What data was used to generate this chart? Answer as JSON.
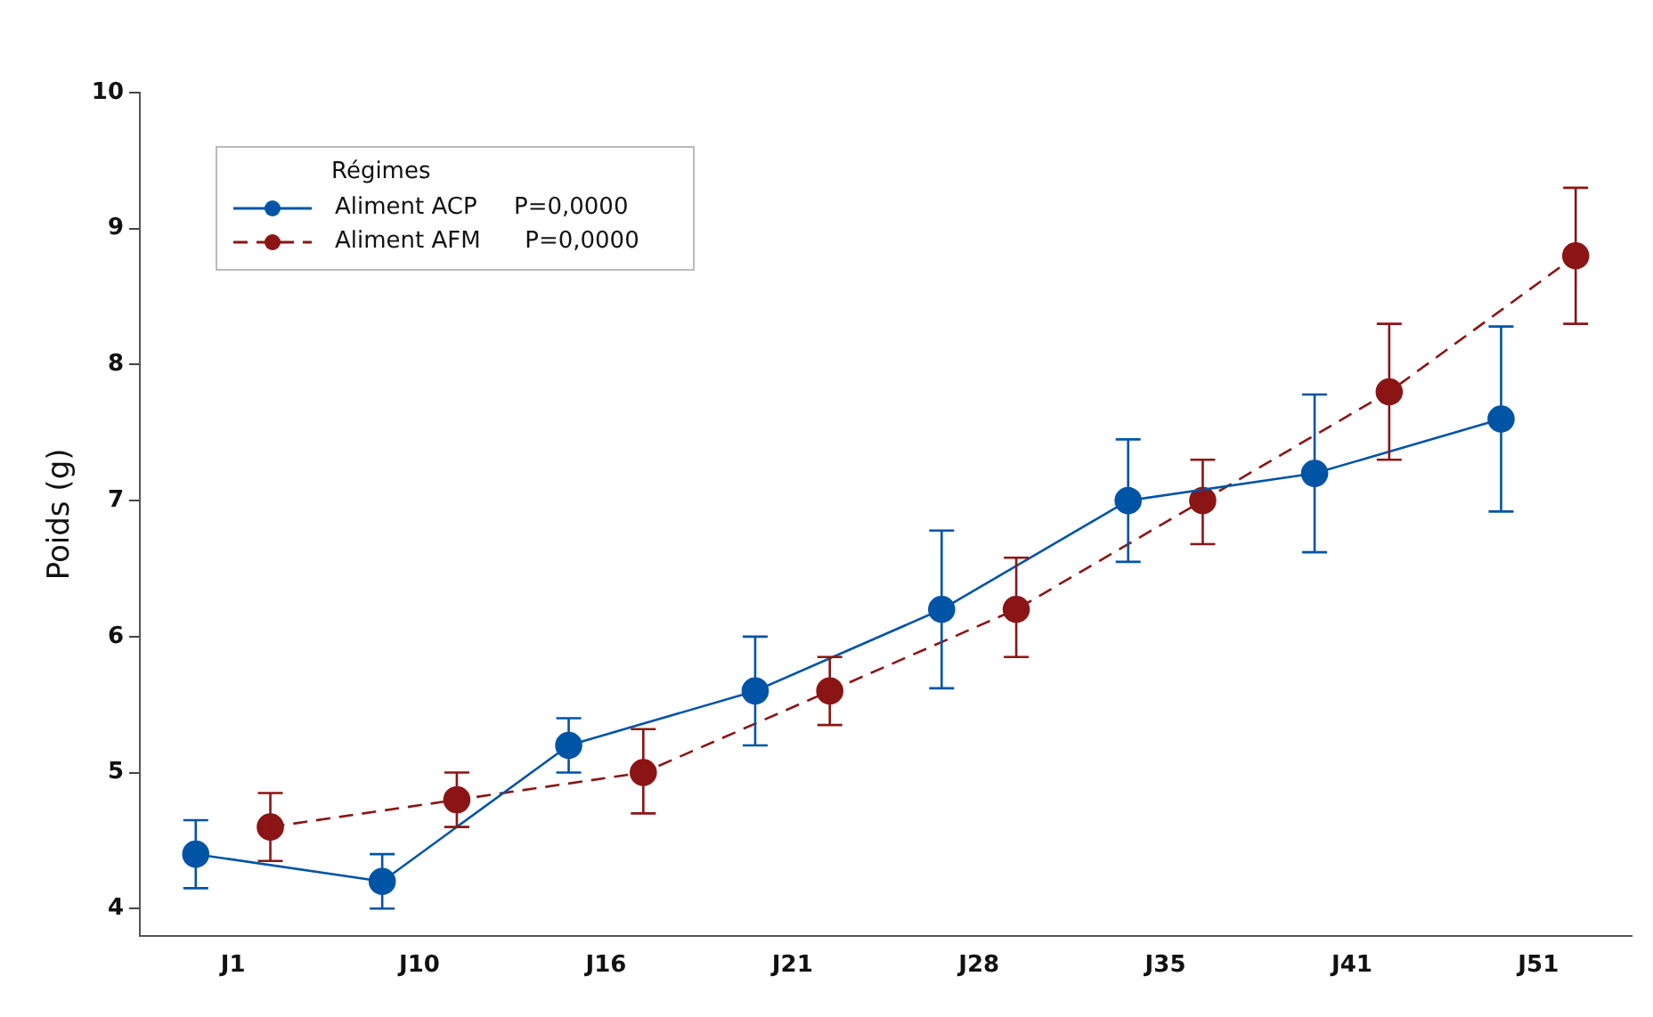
{
  "chart_data": {
    "type": "line",
    "ylabel": "Poids (g)",
    "legend_title": "Régimes",
    "categories": [
      "J1",
      "J10",
      "J16",
      "J21",
      "J28",
      "J35",
      "J41",
      "J51"
    ],
    "ylim": [
      3.8,
      10
    ],
    "yticks": [
      4,
      5,
      6,
      7,
      8,
      9,
      10
    ],
    "grid": false,
    "legend": "top left",
    "marker": "circle",
    "series": [
      {
        "name": "Aliment ACP     P=0,0000",
        "color": "#0054a6",
        "line_style": "solid",
        "values": [
          4.4,
          4.2,
          5.2,
          5.6,
          6.2,
          7.0,
          7.2,
          7.6
        ],
        "errors": [
          [
            4.15,
            4.65
          ],
          [
            4.0,
            4.4
          ],
          [
            5.0,
            5.4
          ],
          [
            5.2,
            6.0
          ],
          [
            5.62,
            6.78
          ],
          [
            6.55,
            7.45
          ],
          [
            6.62,
            7.78
          ],
          [
            6.92,
            8.28
          ]
        ]
      },
      {
        "name": "Aliment AFM      P=0,0000",
        "color": "#8b1515",
        "line_style": "dashed",
        "values": [
          4.6,
          4.8,
          5.0,
          5.6,
          6.2,
          7.0,
          7.8,
          8.8
        ],
        "errors": [
          [
            4.35,
            4.85
          ],
          [
            4.6,
            5.0
          ],
          [
            4.7,
            5.32
          ],
          [
            5.35,
            5.85
          ],
          [
            5.85,
            6.58
          ],
          [
            6.68,
            7.3
          ],
          [
            7.3,
            8.3
          ],
          [
            8.3,
            9.3
          ]
        ]
      }
    ]
  }
}
